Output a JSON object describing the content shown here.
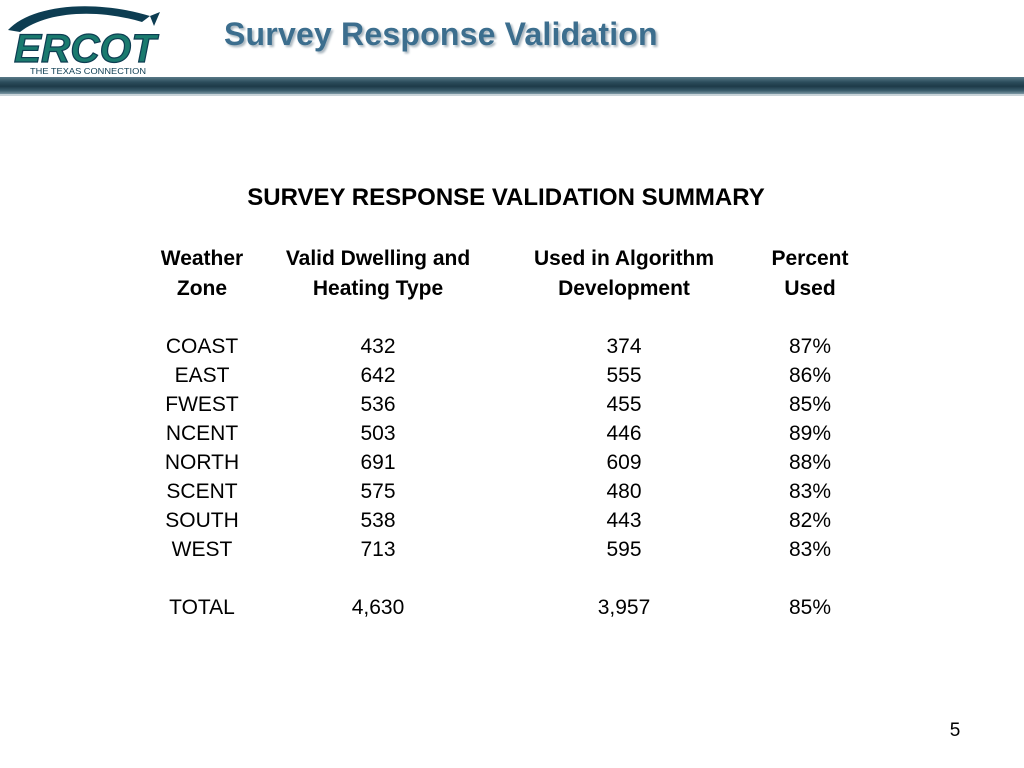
{
  "header": {
    "title": "Survey Response Validation",
    "logo": {
      "name": "ERCOT",
      "tagline": "THE TEXAS CONNECTION",
      "colors": {
        "primary": "#1a7a6e",
        "dark": "#0d3d52"
      }
    }
  },
  "table": {
    "title": "SURVEY RESPONSE VALIDATION SUMMARY",
    "headers": [
      [
        "Weather",
        "Zone"
      ],
      [
        "Valid Dwelling and",
        "Heating Type"
      ],
      [
        "Used in Algorithm",
        "Development"
      ],
      [
        "Percent",
        "Used"
      ]
    ],
    "rows": [
      [
        "COAST",
        "432",
        "374",
        "87%"
      ],
      [
        "EAST",
        "642",
        "555",
        "86%"
      ],
      [
        "FWEST",
        "536",
        "455",
        "85%"
      ],
      [
        "NCENT",
        "503",
        "446",
        "89%"
      ],
      [
        "NORTH",
        "691",
        "609",
        "88%"
      ],
      [
        "SCENT",
        "575",
        "480",
        "83%"
      ],
      [
        "SOUTH",
        "538",
        "443",
        "82%"
      ],
      [
        "WEST",
        "713",
        "595",
        "83%"
      ]
    ],
    "total": [
      "TOTAL",
      "4,630",
      "3,957",
      "85%"
    ]
  },
  "footer": {
    "page_number": "5"
  },
  "colors": {
    "title": "#3c6e8e",
    "header_bar": "#1d3a48"
  }
}
